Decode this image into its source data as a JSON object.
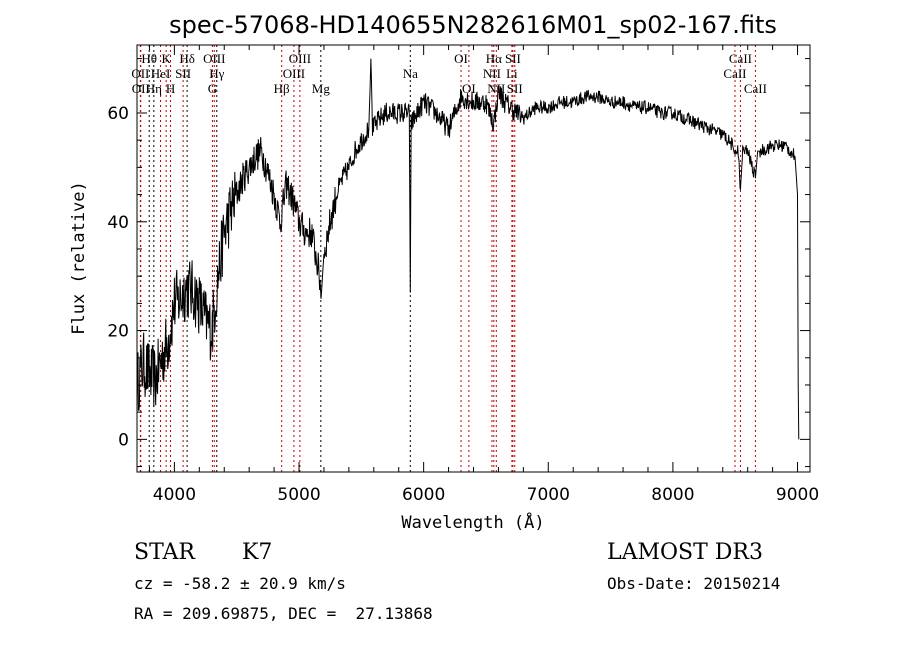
{
  "chart_data": {
    "type": "line",
    "title": "spec-57068-HD140655N282616M01_sp02-167.fits",
    "xlabel": "Wavelength (Å)",
    "ylabel": "Flux (relative)",
    "xlim": [
      3700,
      9100
    ],
    "ylim": [
      -6,
      72.5
    ],
    "xticks": [
      4000,
      5000,
      6000,
      7000,
      8000,
      9000
    ],
    "yticks": [
      0,
      20,
      40,
      60
    ],
    "grid": false,
    "series": [
      {
        "name": "spectrum",
        "points": [
          [
            3700,
            10
          ],
          [
            3750,
            14
          ],
          [
            3800,
            12
          ],
          [
            3850,
            11
          ],
          [
            3900,
            15
          ],
          [
            3950,
            18
          ],
          [
            4000,
            25
          ],
          [
            4050,
            26
          ],
          [
            4100,
            28
          ],
          [
            4150,
            27
          ],
          [
            4200,
            25
          ],
          [
            4250,
            22
          ],
          [
            4300,
            20
          ],
          [
            4350,
            30
          ],
          [
            4400,
            38
          ],
          [
            4450,
            42
          ],
          [
            4500,
            45
          ],
          [
            4550,
            48
          ],
          [
            4600,
            50
          ],
          [
            4650,
            52
          ],
          [
            4700,
            53
          ],
          [
            4750,
            49
          ],
          [
            4800,
            45
          ],
          [
            4850,
            40
          ],
          [
            4900,
            47
          ],
          [
            4950,
            44
          ],
          [
            5000,
            40
          ],
          [
            5050,
            38
          ],
          [
            5100,
            38
          ],
          [
            5150,
            32
          ],
          [
            5180,
            27
          ],
          [
            5200,
            34
          ],
          [
            5250,
            40
          ],
          [
            5300,
            45
          ],
          [
            5350,
            48
          ],
          [
            5400,
            50
          ],
          [
            5450,
            53
          ],
          [
            5500,
            55
          ],
          [
            5560,
            57
          ],
          [
            5577,
            70
          ],
          [
            5590,
            57
          ],
          [
            5650,
            59
          ],
          [
            5700,
            60
          ],
          [
            5800,
            60
          ],
          [
            5885,
            60
          ],
          [
            5893,
            27
          ],
          [
            5900,
            58
          ],
          [
            5950,
            60
          ],
          [
            6000,
            62
          ],
          [
            6100,
            60
          ],
          [
            6200,
            57
          ],
          [
            6250,
            60
          ],
          [
            6300,
            63
          ],
          [
            6400,
            62
          ],
          [
            6500,
            62
          ],
          [
            6563,
            58
          ],
          [
            6600,
            64
          ],
          [
            6650,
            62
          ],
          [
            6700,
            61
          ],
          [
            6800,
            59
          ],
          [
            6900,
            61
          ],
          [
            7000,
            61
          ],
          [
            7100,
            62
          ],
          [
            7200,
            62
          ],
          [
            7300,
            63
          ],
          [
            7400,
            63
          ],
          [
            7500,
            62
          ],
          [
            7600,
            62
          ],
          [
            7700,
            61
          ],
          [
            7800,
            61
          ],
          [
            7900,
            60
          ],
          [
            8000,
            60
          ],
          [
            8100,
            59
          ],
          [
            8200,
            58
          ],
          [
            8300,
            57
          ],
          [
            8400,
            56
          ],
          [
            8480,
            54
          ],
          [
            8498,
            52
          ],
          [
            8520,
            54
          ],
          [
            8542,
            46
          ],
          [
            8560,
            53
          ],
          [
            8600,
            53
          ],
          [
            8662,
            48
          ],
          [
            8680,
            53
          ],
          [
            8700,
            53
          ],
          [
            8800,
            54
          ],
          [
            8900,
            54
          ],
          [
            8980,
            52
          ],
          [
            9000,
            45
          ],
          [
            9005,
            10
          ],
          [
            9010,
            0
          ]
        ]
      }
    ],
    "lines": [
      {
        "label": "OII",
        "wave": 3727,
        "color": "red",
        "row": 1
      },
      {
        "label": "OII",
        "wave": 3730,
        "color": "red",
        "row": 2
      },
      {
        "label": "Hθ",
        "wave": 3798,
        "color": "black",
        "row": 0
      },
      {
        "label": "Hη",
        "wave": 3835,
        "color": "black",
        "row": 2
      },
      {
        "label": "HeI",
        "wave": 3889,
        "color": "red",
        "row": 1
      },
      {
        "label": "K",
        "wave": 3934,
        "color": "red",
        "row": 0
      },
      {
        "label": "H",
        "wave": 3969,
        "color": "red",
        "row": 2
      },
      {
        "label": "SII",
        "wave": 4070,
        "color": "red",
        "row": 1
      },
      {
        "label": "Hδ",
        "wave": 4102,
        "color": "black",
        "row": 0
      },
      {
        "label": "G",
        "wave": 4305,
        "color": "red",
        "row": 2
      },
      {
        "label": "OIII",
        "wave": 4320,
        "color": "red",
        "row": 0
      },
      {
        "label": "Hγ",
        "wave": 4340,
        "color": "black",
        "row": 1
      },
      {
        "label": "Hβ",
        "wave": 4861,
        "color": "red",
        "row": 2
      },
      {
        "label": "OIII",
        "wave": 4959,
        "color": "red",
        "row": 1
      },
      {
        "label": "OIII",
        "wave": 5007,
        "color": "red",
        "row": 0
      },
      {
        "label": "Mg",
        "wave": 5175,
        "color": "black",
        "row": 2
      },
      {
        "label": "Na",
        "wave": 5893,
        "color": "black",
        "row": 1
      },
      {
        "label": "OI",
        "wave": 6300,
        "color": "red",
        "row": 0
      },
      {
        "label": "OI",
        "wave": 6363,
        "color": "red",
        "row": 2
      },
      {
        "label": "NII",
        "wave": 6548,
        "color": "red",
        "row": 1
      },
      {
        "label": "Hα",
        "wave": 6563,
        "color": "red",
        "row": 0
      },
      {
        "label": "NII",
        "wave": 6583,
        "color": "red",
        "row": 2
      },
      {
        "label": "Li",
        "wave": 6708,
        "color": "red",
        "row": 1
      },
      {
        "label": "SII",
        "wave": 6716,
        "color": "red",
        "row": 0
      },
      {
        "label": "SII",
        "wave": 6731,
        "color": "red",
        "row": 2
      },
      {
        "label": "CaII",
        "wave": 8498,
        "color": "red",
        "row": 1
      },
      {
        "label": "CaII",
        "wave": 8542,
        "color": "red",
        "row": 0
      },
      {
        "label": "CaII",
        "wave": 8662,
        "color": "red",
        "row": 2
      }
    ]
  },
  "info": {
    "class": "STAR",
    "subclass": "K7",
    "cz": "cz = -58.2 ± 20.9 km/s",
    "radec": "RA = 209.69875, DEC =  27.13868",
    "survey": "LAMOST DR3",
    "obsdate": "Obs-Date: 20150214"
  }
}
